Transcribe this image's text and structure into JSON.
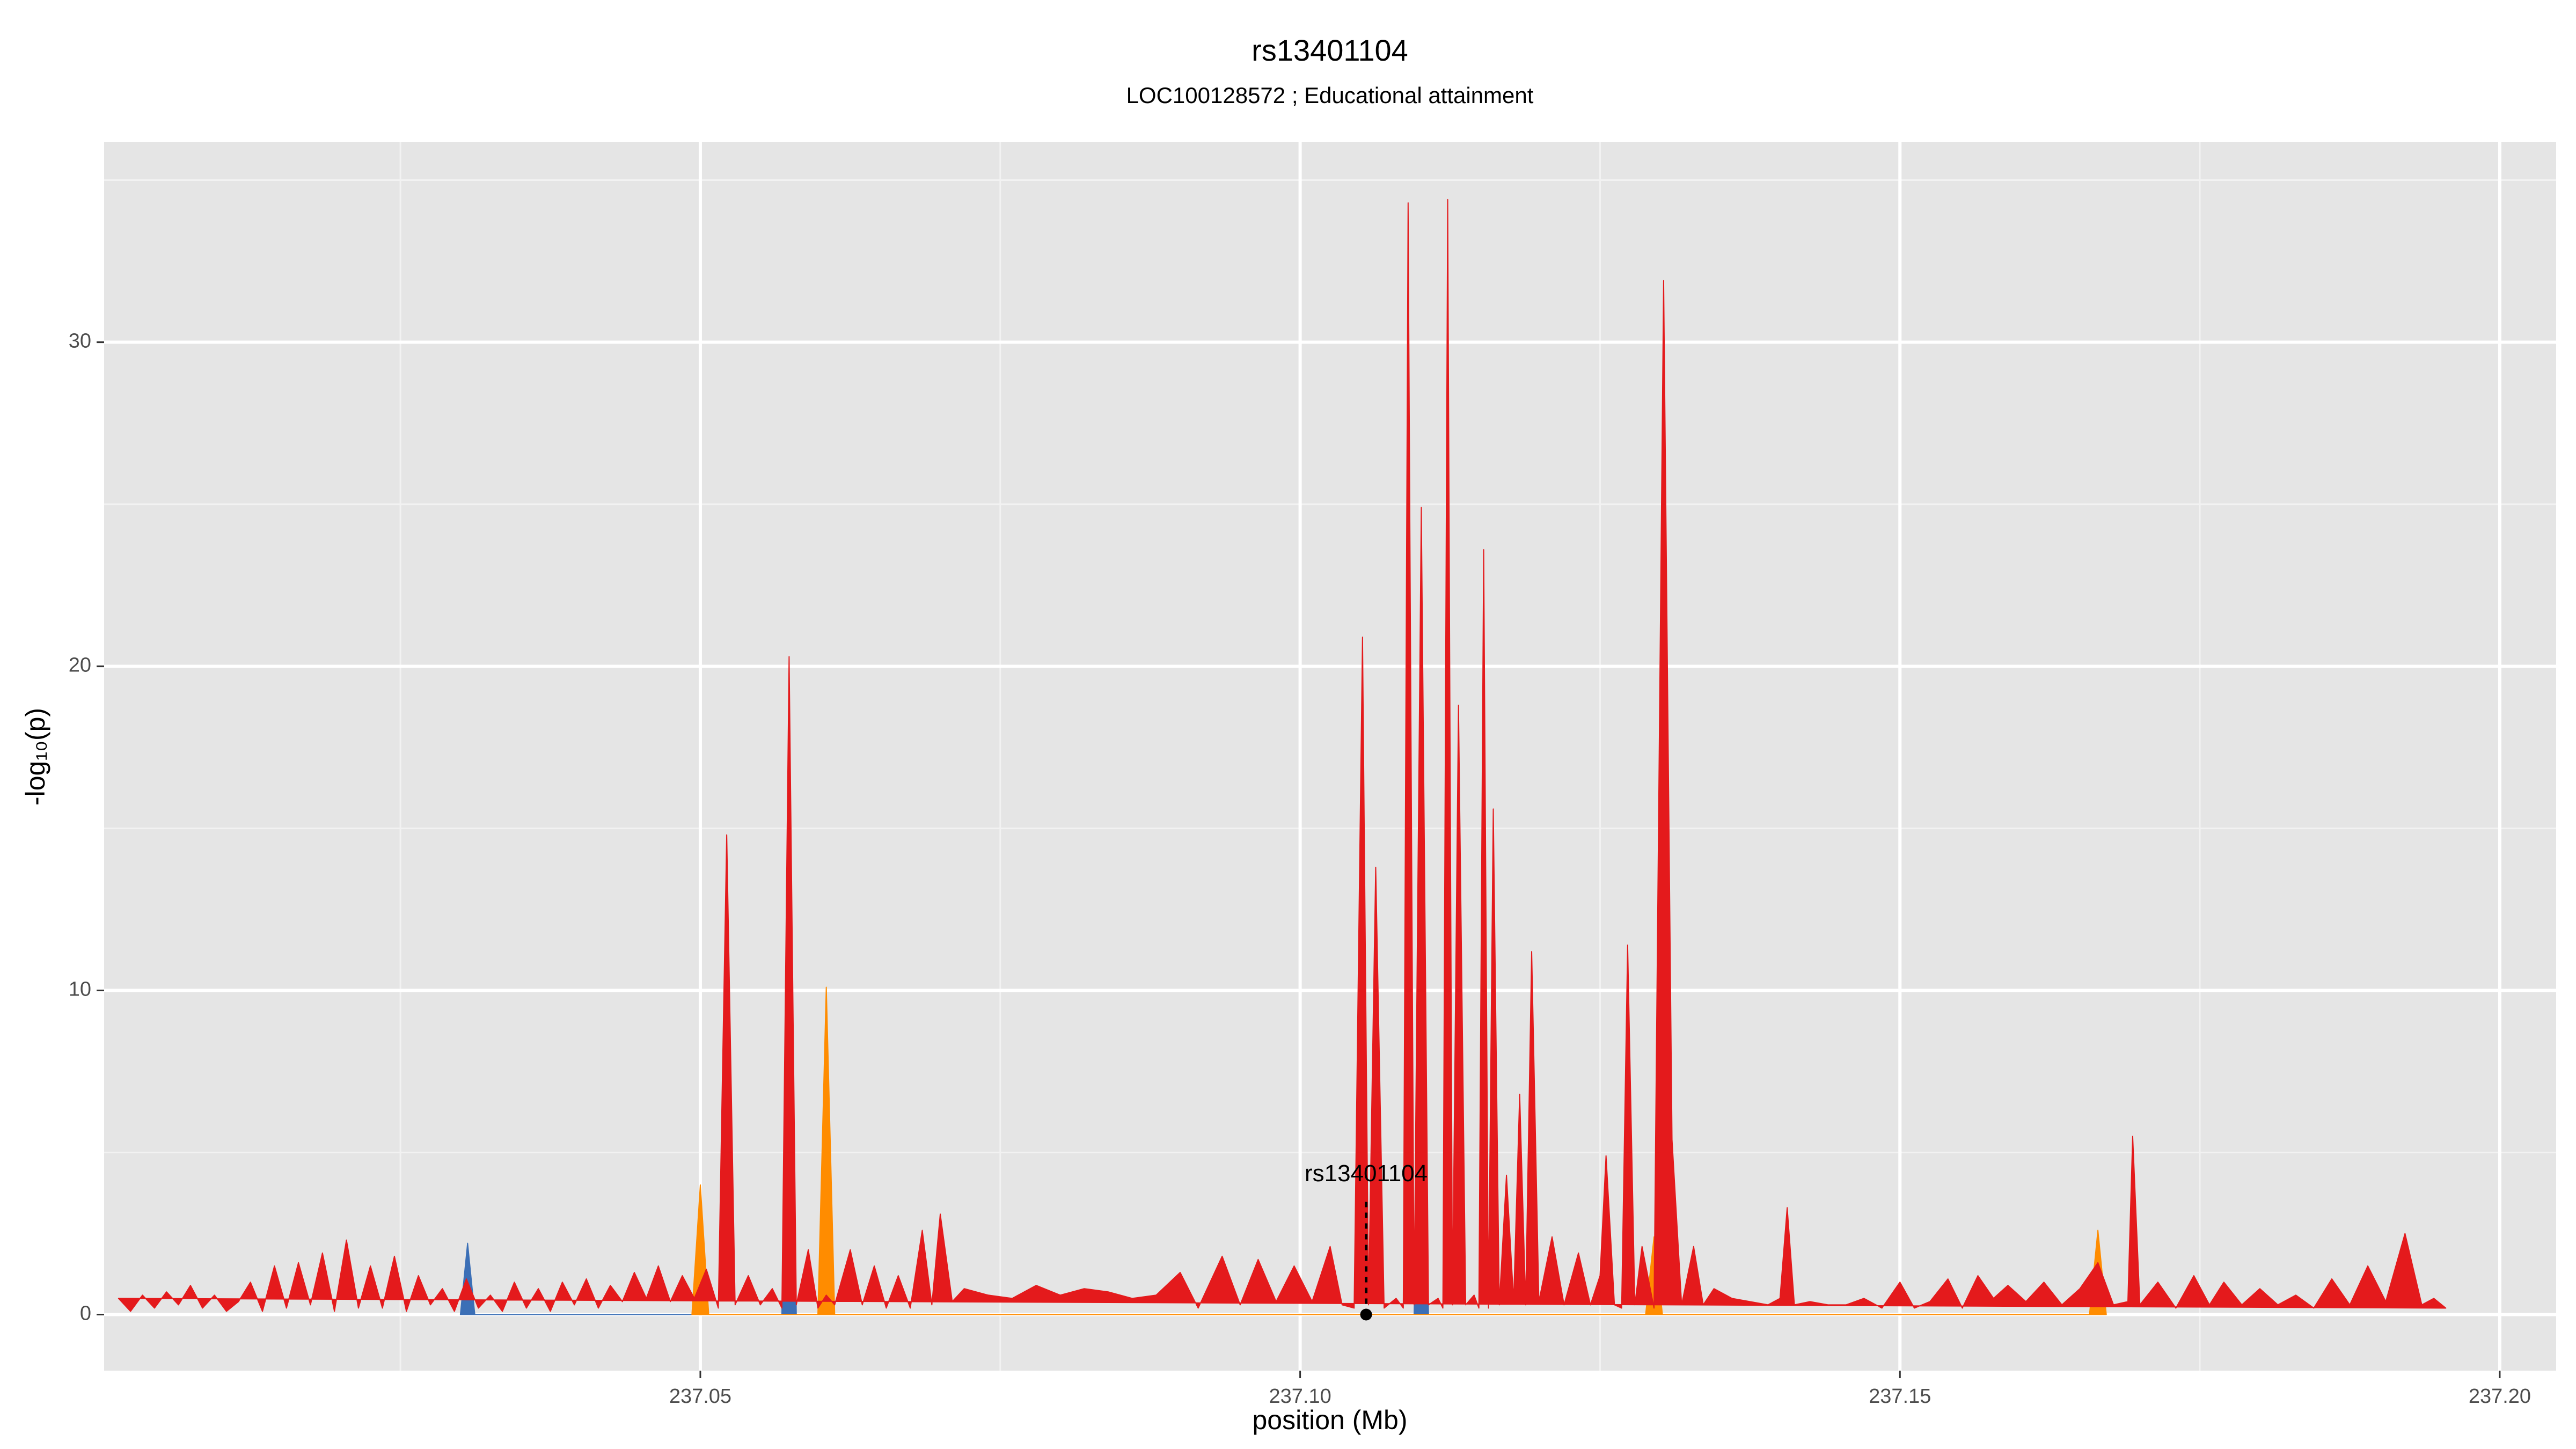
{
  "chart_data": {
    "type": "area",
    "title": "rs13401104",
    "subtitle": "LOC100128572 ; Educational attainment",
    "x_label": "position (Mb)",
    "y_label": "-log₁₀(p)",
    "xlim": [
      237.0003,
      237.2047
    ],
    "ylim": [
      -1.73,
      36.17
    ],
    "xticks": [
      {
        "value": 237.05,
        "label": "237.05"
      },
      {
        "value": 237.1,
        "label": "237.10"
      },
      {
        "value": 237.15,
        "label": "237.15"
      },
      {
        "value": 237.2,
        "label": "237.20"
      }
    ],
    "yticks": [
      0,
      10,
      20,
      30
    ],
    "x_minor_ticks": [
      237.025,
      237.075,
      237.125,
      237.175
    ],
    "y_minor_ticks": [
      5,
      15,
      25,
      35
    ],
    "grid": true,
    "series": [
      {
        "color": "#3b6fb6",
        "x": [
          237.03,
          237.0306,
          237.0312,
          237.0568,
          237.0574,
          237.058,
          237.1095,
          237.1101,
          237.1107
        ],
        "values": [
          0,
          2.2,
          0,
          0,
          17,
          0,
          0,
          12,
          0
        ]
      },
      {
        "color": "#ff8c00",
        "x": [
          237.0493,
          237.05,
          237.0507,
          237.0598,
          237.0605,
          237.0612,
          237.1288,
          237.1295,
          237.1302,
          237.1658,
          237.1665,
          237.1672
        ],
        "values": [
          0,
          4.0,
          0,
          0,
          10.1,
          0,
          0,
          2.4,
          0,
          0,
          2.6,
          0
        ]
      },
      {
        "color": "#e41a1c",
        "x": [
          237.0015,
          237.0025,
          237.0035,
          237.0045,
          237.0055,
          237.0065,
          237.0075,
          237.0085,
          237.0095,
          237.0105,
          237.0115,
          237.0125,
          237.0135,
          237.0145,
          237.0155,
          237.0165,
          237.0175,
          237.0185,
          237.0195,
          237.0205,
          237.0215,
          237.0225,
          237.0235,
          237.0245,
          237.0255,
          237.0265,
          237.0275,
          237.0285,
          237.0295,
          237.0305,
          237.0315,
          237.0325,
          237.0335,
          237.0345,
          237.0355,
          237.0365,
          237.0375,
          237.0385,
          237.0395,
          237.0405,
          237.0415,
          237.0425,
          237.0435,
          237.0445,
          237.0455,
          237.0465,
          237.0475,
          237.0485,
          237.0495,
          237.0505,
          237.0515,
          237.0522,
          237.0529,
          237.054,
          237.055,
          237.056,
          237.0568,
          237.0574,
          237.058,
          237.059,
          237.0598,
          237.0605,
          237.0612,
          237.0625,
          237.0635,
          237.0645,
          237.0655,
          237.0665,
          237.0675,
          237.0685,
          237.0693,
          237.07,
          237.071,
          237.072,
          237.074,
          237.076,
          237.078,
          237.08,
          237.082,
          237.084,
          237.086,
          237.088,
          237.09,
          237.0915,
          237.0935,
          237.095,
          237.0965,
          237.098,
          237.0995,
          237.101,
          237.1025,
          237.1035,
          237.1045,
          237.1052,
          237.1057,
          237.1063,
          237.107,
          237.108,
          237.1086,
          237.109,
          237.1095,
          237.1101,
          237.1107,
          237.1115,
          237.1119,
          237.1123,
          237.1127,
          237.1132,
          237.1138,
          237.1145,
          237.1149,
          237.1153,
          237.1157,
          237.1161,
          237.1166,
          237.1172,
          237.1178,
          237.1183,
          237.1188,
          237.1193,
          237.1199,
          237.121,
          237.122,
          237.1232,
          237.1242,
          237.125,
          237.1255,
          237.1262,
          237.1268,
          237.1273,
          237.1279,
          237.1285,
          237.1295,
          237.1303,
          237.131,
          237.1318,
          237.1328,
          237.1336,
          237.1345,
          237.136,
          237.1375,
          237.139,
          237.14,
          237.1406,
          237.1412,
          237.1425,
          237.144,
          237.1455,
          237.147,
          237.1485,
          237.15,
          237.1512,
          237.1525,
          237.154,
          237.1552,
          237.1565,
          237.1578,
          237.159,
          237.1605,
          237.162,
          237.1635,
          237.165,
          237.1665,
          237.1678,
          237.169,
          237.1694,
          237.17,
          237.1715,
          237.173,
          237.1745,
          237.1758,
          237.177,
          237.1785,
          237.18,
          237.1815,
          237.183,
          237.1845,
          237.186,
          237.1875,
          237.189,
          237.1905,
          237.1921,
          237.1935,
          237.1945,
          237.1955
        ],
        "values": [
          0.5,
          0.1,
          0.6,
          0.2,
          0.7,
          0.3,
          0.9,
          0.2,
          0.6,
          0.1,
          0.4,
          1.0,
          0.1,
          1.5,
          0.2,
          1.6,
          0.3,
          1.9,
          0.1,
          2.3,
          0.2,
          1.5,
          0.2,
          1.8,
          0.1,
          1.2,
          0.3,
          0.8,
          0.1,
          1.1,
          0.2,
          0.6,
          0.1,
          1.0,
          0.2,
          0.8,
          0.1,
          1.0,
          0.3,
          1.1,
          0.2,
          0.9,
          0.4,
          1.3,
          0.5,
          1.5,
          0.4,
          1.2,
          0.5,
          1.4,
          0.2,
          14.8,
          0.3,
          1.2,
          0.3,
          0.8,
          0.2,
          20.3,
          0.3,
          2.0,
          0.2,
          0.6,
          0.3,
          2.0,
          0.3,
          1.5,
          0.2,
          1.2,
          0.2,
          2.6,
          0.3,
          3.1,
          0.4,
          0.8,
          0.6,
          0.5,
          0.9,
          0.6,
          0.8,
          0.7,
          0.5,
          0.6,
          1.3,
          0.2,
          1.8,
          0.3,
          1.7,
          0.4,
          1.5,
          0.4,
          2.1,
          0.3,
          0.2,
          20.9,
          0.3,
          13.8,
          0.2,
          0.5,
          0.2,
          34.3,
          0.3,
          24.9,
          0.3,
          0.5,
          0.2,
          34.4,
          0.3,
          18.8,
          0.3,
          0.6,
          0.2,
          23.6,
          0.2,
          15.6,
          0.3,
          4.3,
          0.4,
          6.8,
          0.3,
          11.2,
          0.4,
          2.4,
          0.3,
          1.9,
          0.3,
          1.2,
          4.9,
          0.3,
          0.2,
          11.4,
          0.3,
          2.1,
          0.2,
          31.9,
          5.4,
          0.3,
          2.1,
          0.3,
          0.8,
          0.5,
          0.4,
          0.3,
          0.5,
          3.3,
          0.3,
          0.4,
          0.3,
          0.3,
          0.5,
          0.2,
          1.0,
          0.2,
          0.4,
          1.1,
          0.2,
          1.2,
          0.5,
          0.9,
          0.4,
          1.0,
          0.3,
          0.8,
          1.6,
          0.3,
          0.4,
          5.5,
          0.3,
          1.0,
          0.2,
          1.2,
          0.3,
          1.0,
          0.3,
          0.8,
          0.3,
          0.6,
          0.2,
          1.1,
          0.3,
          1.5,
          0.4,
          2.5,
          0.3,
          0.5,
          0.2
        ]
      }
    ],
    "annotations": [
      {
        "text": "rs13401104",
        "x": 237.1055,
        "y": 0
      }
    ]
  }
}
